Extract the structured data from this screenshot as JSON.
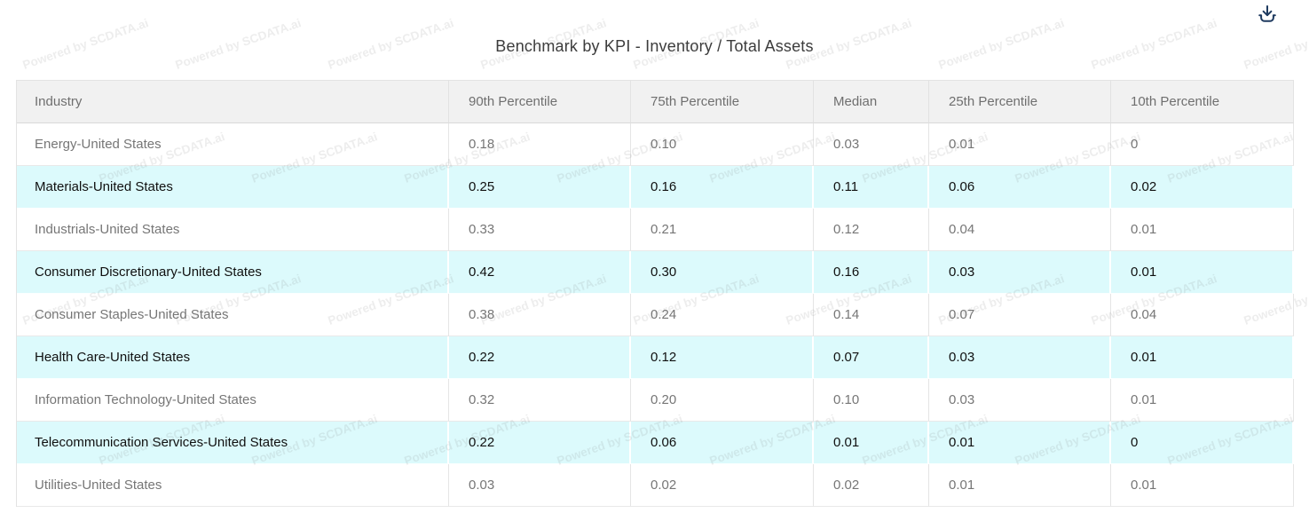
{
  "title": "Benchmark by KPI - Inventory / Total Assets",
  "watermark": {
    "text": "Powered by SCDATA.ai"
  },
  "toolbar": {
    "download_icon": "download-icon"
  },
  "colors": {
    "highlight_row_bg": "#dcfafc",
    "header_bg": "#f1f1f1",
    "download_icon": "#1e3a5f",
    "watermark_color": "#787878"
  },
  "table": {
    "columns": [
      "Industry",
      "90th Percentile",
      "75th Percentile",
      "Median",
      "25th Percentile",
      "10th Percentile"
    ],
    "rows": [
      {
        "industry": "Energy-United States",
        "values": [
          "0.18",
          "0.10",
          "0.03",
          "0.01",
          "0"
        ],
        "highlighted": false
      },
      {
        "industry": "Materials-United States",
        "values": [
          "0.25",
          "0.16",
          "0.11",
          "0.06",
          "0.02"
        ],
        "highlighted": true
      },
      {
        "industry": "Industrials-United States",
        "values": [
          "0.33",
          "0.21",
          "0.12",
          "0.04",
          "0.01"
        ],
        "highlighted": false
      },
      {
        "industry": "Consumer Discretionary-United States",
        "values": [
          "0.42",
          "0.30",
          "0.16",
          "0.03",
          "0.01"
        ],
        "highlighted": true
      },
      {
        "industry": "Consumer Staples-United States",
        "values": [
          "0.38",
          "0.24",
          "0.14",
          "0.07",
          "0.04"
        ],
        "highlighted": false
      },
      {
        "industry": "Health Care-United States",
        "values": [
          "0.22",
          "0.12",
          "0.07",
          "0.03",
          "0.01"
        ],
        "highlighted": true
      },
      {
        "industry": "Information Technology-United States",
        "values": [
          "0.32",
          "0.20",
          "0.10",
          "0.03",
          "0.01"
        ],
        "highlighted": false
      },
      {
        "industry": "Telecommunication Services-United States",
        "values": [
          "0.22",
          "0.06",
          "0.01",
          "0.01",
          "0"
        ],
        "highlighted": true
      },
      {
        "industry": "Utilities-United States",
        "values": [
          "0.03",
          "0.02",
          "0.02",
          "0.01",
          "0.01"
        ],
        "highlighted": false
      }
    ]
  }
}
